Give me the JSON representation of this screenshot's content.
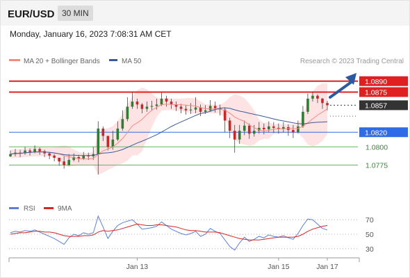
{
  "header": {
    "pair": "EUR/USD",
    "timeframe": "30 MIN",
    "datetime": "Monday, January 16, 2023 7:08:31 AM CET"
  },
  "legend": {
    "ma20_label": "MA 20 + Bollinger Bands",
    "ma50_label": "MA 50",
    "credit": "Research © 2023 Trading Central",
    "rsi_label": "RSI",
    "rsi_ma_label": "9MA"
  },
  "colors": {
    "candle_up": "#2e7d32",
    "candle_down": "#c62828",
    "ma20": "#f28b82",
    "ma50": "#3b5998",
    "band_fill": "#fde0e0",
    "resistance": "#e02020",
    "support_blue": "#2e6be6",
    "support_green": "#66b266",
    "arrow": "#2a5aa0",
    "rsi": "#5b7fd6",
    "rsi_ma": "#d92424"
  },
  "chart_data": [
    {
      "type": "candlestick",
      "ylim": [
        1.0745,
        1.0905
      ],
      "levels": [
        {
          "value": 1.089,
          "label": "1.0890",
          "style": "resistance"
        },
        {
          "value": 1.0875,
          "label": "1.0875",
          "style": "resistance"
        },
        {
          "value": 1.0857,
          "label": "1.0857",
          "style": "last"
        },
        {
          "value": 1.082,
          "label": "1.0820",
          "style": "support-blue"
        },
        {
          "value": 1.08,
          "label": "1.0800",
          "style": "support-green"
        },
        {
          "value": 1.0775,
          "label": "1.0775",
          "style": "support-green"
        }
      ],
      "x_ticks": [
        {
          "index": 26,
          "label": "Jan 13"
        },
        {
          "index": 55,
          "label": "Jan 15"
        },
        {
          "index": 65,
          "label": "Jan 17"
        }
      ],
      "close": [
        1.079,
        1.0792,
        1.0791,
        1.0795,
        1.0793,
        1.0797,
        1.0794,
        1.0791,
        1.0788,
        1.0785,
        1.078,
        1.0775,
        1.0782,
        1.0786,
        1.0784,
        1.0788,
        1.0787,
        1.079,
        1.0825,
        1.0815,
        1.08,
        1.081,
        1.0825,
        1.0838,
        1.0855,
        1.0862,
        1.0858,
        1.0852,
        1.0855,
        1.0856,
        1.0858,
        1.0866,
        1.0862,
        1.0858,
        1.0855,
        1.0852,
        1.085,
        1.0851,
        1.0854,
        1.0848,
        1.085,
        1.0856,
        1.0853,
        1.0851,
        1.0836,
        1.0822,
        1.081,
        1.0822,
        1.0829,
        1.0818,
        1.0822,
        1.0826,
        1.0824,
        1.0828,
        1.0826,
        1.0825,
        1.0827,
        1.0823,
        1.082,
        1.0828,
        1.0848,
        1.0866,
        1.087,
        1.0866,
        1.086,
        1.0857
      ],
      "high": [
        1.0795,
        1.0797,
        1.0796,
        1.08,
        1.0798,
        1.0802,
        1.0799,
        1.0796,
        1.0793,
        1.079,
        1.0785,
        1.0787,
        1.079,
        1.0791,
        1.0789,
        1.0793,
        1.0792,
        1.08,
        1.0835,
        1.0828,
        1.0812,
        1.0822,
        1.0835,
        1.085,
        1.0868,
        1.0875,
        1.0866,
        1.086,
        1.0862,
        1.0863,
        1.0866,
        1.0874,
        1.087,
        1.0866,
        1.0862,
        1.0859,
        1.0857,
        1.086,
        1.0868,
        1.0858,
        1.0857,
        1.0864,
        1.0862,
        1.0858,
        1.0854,
        1.084,
        1.083,
        1.083,
        1.0836,
        1.0832,
        1.083,
        1.0834,
        1.0832,
        1.0835,
        1.0834,
        1.0832,
        1.0834,
        1.0831,
        1.083,
        1.0836,
        1.0856,
        1.0873,
        1.0876,
        1.0872,
        1.0867,
        1.0863
      ],
      "low": [
        1.0786,
        1.0787,
        1.0786,
        1.0789,
        1.0788,
        1.0791,
        1.0789,
        1.0786,
        1.0783,
        1.078,
        1.0774,
        1.077,
        1.0774,
        1.078,
        1.0779,
        1.0782,
        1.0782,
        1.0782,
        1.0762,
        1.0808,
        1.0795,
        1.0796,
        1.0808,
        1.0822,
        1.0835,
        1.0852,
        1.0852,
        1.0846,
        1.0848,
        1.085,
        1.0851,
        1.0856,
        1.0855,
        1.0852,
        1.0849,
        1.0846,
        1.0844,
        1.0845,
        1.0846,
        1.0842,
        1.0845,
        1.0848,
        1.0847,
        1.0843,
        1.082,
        1.0812,
        1.0792,
        1.0804,
        1.0816,
        1.0811,
        1.0814,
        1.0818,
        1.0817,
        1.082,
        1.0819,
        1.0818,
        1.082,
        1.0815,
        1.0812,
        1.0818,
        1.0826,
        1.0845,
        1.0862,
        1.086,
        1.0852,
        1.085
      ]
    },
    {
      "type": "line",
      "panel": "rsi",
      "ylim": [
        25,
        75
      ],
      "y_ticks": [
        70,
        50,
        30
      ],
      "series": [
        {
          "name": "RSI",
          "values": [
            52,
            54,
            53,
            55,
            54,
            56,
            53,
            50,
            47,
            44,
            40,
            36,
            45,
            50,
            48,
            52,
            50,
            52,
            75,
            60,
            44,
            54,
            62,
            66,
            68,
            70,
            64,
            57,
            58,
            59,
            61,
            67,
            62,
            57,
            54,
            51,
            49,
            51,
            54,
            47,
            50,
            58,
            54,
            51,
            42,
            33,
            28,
            38,
            46,
            40,
            43,
            47,
            45,
            49,
            47,
            46,
            48,
            45,
            43,
            51,
            62,
            71,
            70,
            64,
            58,
            56
          ]
        },
        {
          "name": "9MA",
          "values": [
            50,
            51,
            52,
            52,
            53,
            54,
            54,
            53,
            53,
            52,
            50,
            48,
            47,
            47,
            47,
            48,
            48,
            49,
            53,
            55,
            54,
            55,
            56,
            58,
            60,
            62,
            64,
            63,
            62,
            62,
            63,
            63,
            62,
            61,
            60,
            58,
            56,
            55,
            55,
            54,
            53,
            53,
            53,
            52,
            50,
            48,
            46,
            44,
            43,
            42,
            42,
            42,
            43,
            44,
            45,
            46,
            46,
            46,
            46,
            47,
            50,
            54,
            57,
            59,
            61,
            62
          ]
        }
      ]
    }
  ]
}
